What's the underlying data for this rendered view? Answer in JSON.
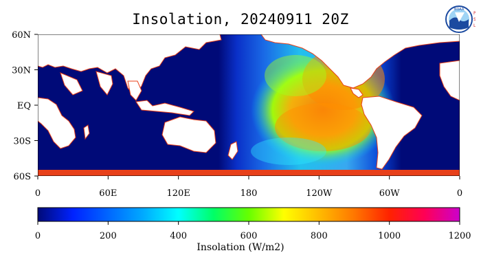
{
  "title": "Insolation, 20240911 20Z",
  "logo": {
    "text": "NOAA",
    "side_text": [
      "P",
      "S",
      "L"
    ],
    "colors": {
      "ring": "#1b4aa0",
      "sky": "#9fd4f5",
      "side": "#d0202a"
    }
  },
  "map": {
    "lat_ticks": [
      "60N",
      "30N",
      "EQ",
      "30S",
      "60S"
    ],
    "lon_ticks": [
      "0",
      "60E",
      "120E",
      "180",
      "120W",
      "60W",
      "0"
    ],
    "lat_range": [
      -60,
      60
    ],
    "lon_range_east_of_greenwich": [
      0,
      360
    ],
    "land_color": "#ffffff",
    "coast_color": "#e8401a",
    "night_color": "#000a78"
  },
  "colorbar": {
    "ticks": [
      "0",
      "200",
      "400",
      "600",
      "800",
      "1000",
      "1200"
    ],
    "range": [
      0,
      1200
    ],
    "label": "Insolation (W/m2)",
    "stops": [
      "#000a78",
      "#0022ff",
      "#0066ff",
      "#00aaff",
      "#00ffff",
      "#00ff66",
      "#66ff00",
      "#ffff00",
      "#ffbb00",
      "#ff7700",
      "#ff2200",
      "#ff0055",
      "#cc00cc"
    ]
  }
}
